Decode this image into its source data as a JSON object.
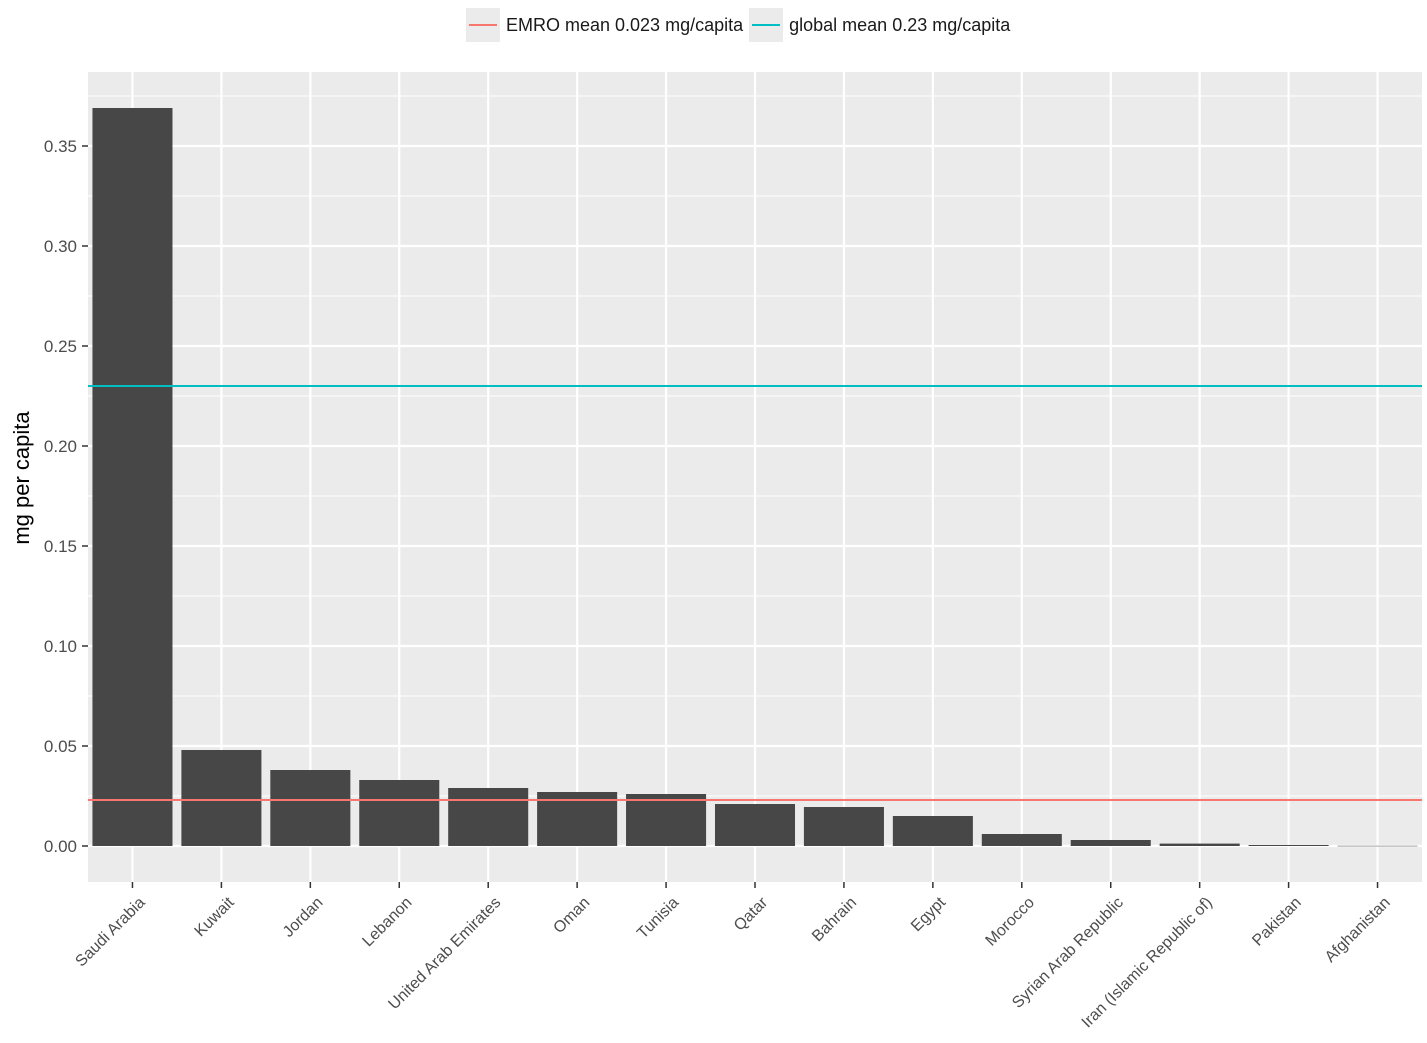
{
  "chart_data": {
    "type": "bar",
    "categories": [
      "Saudi Arabia",
      "Kuwait",
      "Jordan",
      "Lebanon",
      "United Arab Emirates",
      "Oman",
      "Tunisia",
      "Qatar",
      "Bahrain",
      "Egypt",
      "Morocco",
      "Syrian Arab Republic",
      "Iran (Islamic Republic of)",
      "Pakistan",
      "Afghanistan"
    ],
    "values": [
      0.369,
      0.048,
      0.038,
      0.033,
      0.029,
      0.027,
      0.026,
      0.021,
      0.0195,
      0.015,
      0.006,
      0.003,
      0.0012,
      0.0005,
      0.0001
    ],
    "title": "",
    "xlabel": "",
    "ylabel": "mg per capita",
    "ylim": [
      -0.018,
      0.387
    ],
    "yticks": [
      0.0,
      0.05,
      0.1,
      0.15,
      0.2,
      0.25,
      0.3,
      0.35
    ],
    "ytick_labels": [
      "0.00",
      "0.05",
      "0.10",
      "0.15",
      "0.20",
      "0.25",
      "0.30",
      "0.35"
    ],
    "reference_lines": [
      {
        "name": "EMRO mean 0.023 mg/capita",
        "value": 0.023,
        "color": "#f8766d"
      },
      {
        "name": "global mean 0.23 mg/capita",
        "value": 0.23,
        "color": "#00bfc4"
      }
    ],
    "bar_color": "#474747",
    "panel_background": "#ebebeb",
    "grid": true,
    "legend_position": "top"
  }
}
